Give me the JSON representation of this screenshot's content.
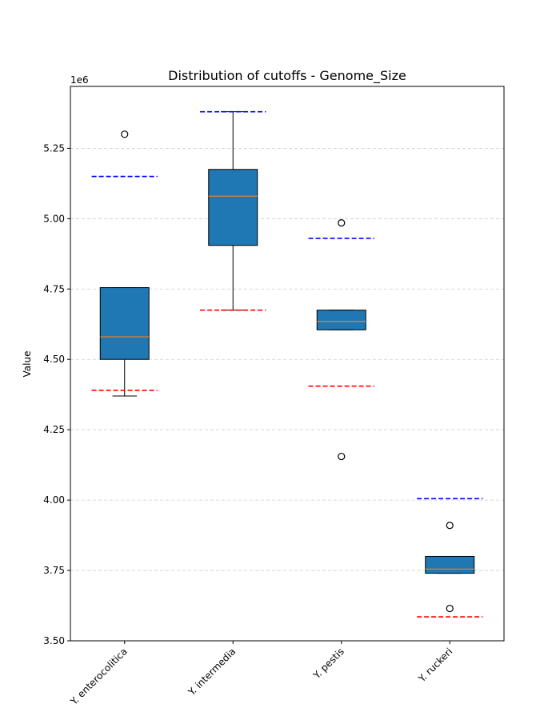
{
  "chart_data": {
    "type": "box",
    "title": "Distribution of cutoffs - Genome_Size",
    "xlabel": "",
    "ylabel": "Value",
    "y_offset_label": "1e6",
    "ylim": [
      3.5,
      5.47
    ],
    "y_ticks": [
      3.5,
      3.75,
      4.0,
      4.25,
      4.5,
      4.75,
      5.0,
      5.25
    ],
    "y_tick_labels": [
      "3.50",
      "3.75",
      "4.00",
      "4.25",
      "4.50",
      "4.75",
      "5.00",
      "5.25"
    ],
    "grid": "horizontal dashed",
    "categories": [
      "Y. enterocolitica",
      "Y. intermedia",
      "Y. pestis",
      "Y. ruckeri"
    ],
    "boxes": [
      {
        "category": "Y. enterocolitica",
        "whisker_low": 4.37,
        "q1": 4.5,
        "median": 4.58,
        "q3": 4.755,
        "whisker_high": 4.755,
        "outliers": [
          5.3
        ],
        "upper_cutoff": 5.15,
        "lower_cutoff": 4.39
      },
      {
        "category": "Y. intermedia",
        "whisker_low": 4.675,
        "q1": 4.905,
        "median": 5.08,
        "q3": 5.175,
        "whisker_high": 5.38,
        "outliers": [],
        "upper_cutoff": 5.38,
        "lower_cutoff": 4.675
      },
      {
        "category": "Y. pestis",
        "whisker_low": 4.605,
        "q1": 4.605,
        "median": 4.635,
        "q3": 4.675,
        "whisker_high": 4.675,
        "outliers": [
          4.985,
          4.155
        ],
        "upper_cutoff": 4.93,
        "lower_cutoff": 4.405
      },
      {
        "category": "Y. ruckeri",
        "whisker_low": 3.74,
        "q1": 3.74,
        "median": 3.755,
        "q3": 3.8,
        "whisker_high": 3.8,
        "outliers": [
          3.91,
          3.615
        ],
        "upper_cutoff": 4.005,
        "lower_cutoff": 3.585
      }
    ],
    "colors": {
      "box_fill": "#1f77b4",
      "median": "#ff7f0e",
      "upper_cutoff": "#0000ff",
      "lower_cutoff": "#ff0000",
      "grid": "#cccccc"
    }
  }
}
